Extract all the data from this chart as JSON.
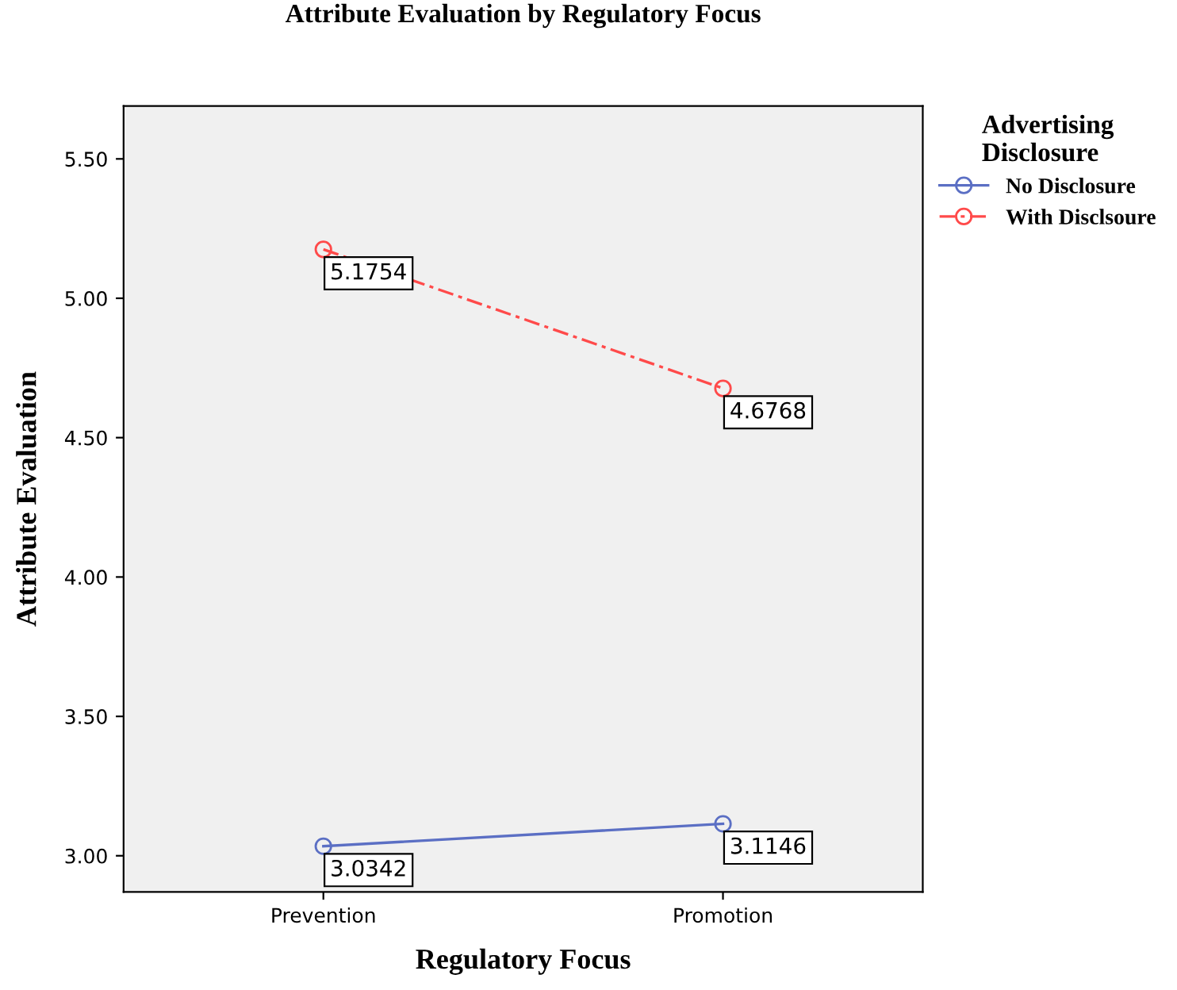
{
  "chart_data": {
    "type": "line",
    "title": "Attribute Evaluation by Regulatory Focus",
    "xlabel": "Regulatory Focus",
    "ylabel": "Attribute Evaluation",
    "legend_title": "Advertising\nDisclosure",
    "categories": [
      "Prevention",
      "Promotion"
    ],
    "series": [
      {
        "name": "No Disclosure",
        "color": "#5b6fc4",
        "values": [
          3.0342,
          3.1146
        ],
        "line_style": "solid"
      },
      {
        "name": "With Disclsoure",
        "color": "#ff4a4a",
        "values": [
          5.1754,
          4.6768
        ],
        "line_style": "dashed"
      }
    ],
    "ylim": [
      2.87,
      5.69
    ],
    "yticks": [
      {
        "value": 3.0,
        "label": "3.00"
      },
      {
        "value": 3.5,
        "label": "3.50"
      },
      {
        "value": 4.0,
        "label": "4.00"
      },
      {
        "value": 4.5,
        "label": "4.50"
      },
      {
        "value": 5.0,
        "label": "5.00"
      },
      {
        "value": 5.5,
        "label": "5.50"
      }
    ],
    "marker": "circle",
    "data_labels": true,
    "legend": "right",
    "grid": false
  }
}
